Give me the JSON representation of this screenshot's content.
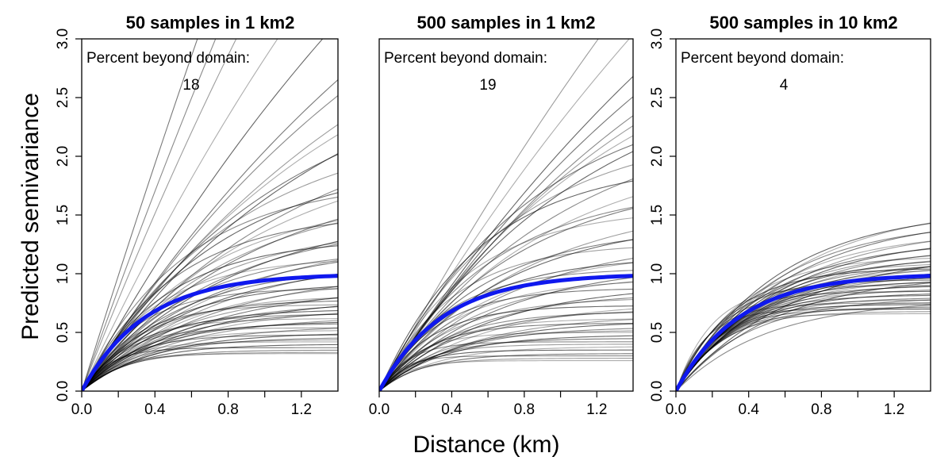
{
  "figure": {
    "y_axis_title": "Predicted semivariance",
    "x_axis_title": "Distance (km)",
    "colors": {
      "mean_curve": "#0f18ee",
      "sample_curves": "#000000",
      "frame": "#000000"
    }
  },
  "chart_data": [
    {
      "type": "line",
      "title": "50 samples in 1 km2",
      "annotation_label": "Percent beyond domain:",
      "annotation_value": "18",
      "xlim": [
        0,
        1.4
      ],
      "ylim": [
        0,
        3.0
      ],
      "x_ticks": [
        "0.0",
        "0.4",
        "0.8",
        "1.2"
      ],
      "x_tick_values": [
        0.0,
        0.4,
        0.8,
        1.2
      ],
      "x_minor_tick_values": [
        0.2,
        0.6,
        1.0
      ],
      "y_ticks": [
        "0.0",
        "0.5",
        "1.0",
        "1.5",
        "2.0",
        "2.5",
        "3.0"
      ],
      "y_tick_values": [
        0.0,
        0.5,
        1.0,
        1.5,
        2.0,
        2.5,
        3.0
      ],
      "show_y_ticks": true,
      "mean_curve": {
        "model": "exponential",
        "sill": 1.0,
        "range": 0.35
      },
      "sample_curves": [
        {
          "sill": 0.32,
          "range": 0.18
        },
        {
          "sill": 0.33,
          "range": 0.22
        },
        {
          "sill": 0.35,
          "range": 0.25
        },
        {
          "sill": 0.37,
          "range": 0.15
        },
        {
          "sill": 0.4,
          "range": 0.3
        },
        {
          "sill": 0.42,
          "range": 0.2
        },
        {
          "sill": 0.44,
          "range": 0.28
        },
        {
          "sill": 0.46,
          "range": 0.35
        },
        {
          "sill": 0.48,
          "range": 0.24
        },
        {
          "sill": 0.5,
          "range": 0.4
        },
        {
          "sill": 0.52,
          "range": 0.3
        },
        {
          "sill": 0.54,
          "range": 0.22
        },
        {
          "sill": 0.56,
          "range": 0.45
        },
        {
          "sill": 0.58,
          "range": 0.32
        },
        {
          "sill": 0.6,
          "range": 0.38
        },
        {
          "sill": 0.62,
          "range": 0.26
        },
        {
          "sill": 0.64,
          "range": 0.5
        },
        {
          "sill": 0.66,
          "range": 0.3
        },
        {
          "sill": 0.68,
          "range": 0.42
        },
        {
          "sill": 0.7,
          "range": 0.36
        },
        {
          "sill": 0.72,
          "range": 0.55
        },
        {
          "sill": 0.74,
          "range": 0.28
        },
        {
          "sill": 0.76,
          "range": 0.48
        },
        {
          "sill": 0.78,
          "range": 0.34
        },
        {
          "sill": 0.8,
          "range": 0.6
        },
        {
          "sill": 0.82,
          "range": 0.4
        },
        {
          "sill": 0.85,
          "range": 0.52
        },
        {
          "sill": 0.88,
          "range": 0.3
        },
        {
          "sill": 0.9,
          "range": 0.65
        },
        {
          "sill": 0.93,
          "range": 0.44
        },
        {
          "sill": 0.96,
          "range": 0.58
        },
        {
          "sill": 1.0,
          "range": 0.36
        },
        {
          "sill": 1.03,
          "range": 0.7
        },
        {
          "sill": 1.06,
          "range": 0.5
        },
        {
          "sill": 1.1,
          "range": 0.62
        },
        {
          "sill": 1.14,
          "range": 0.4
        },
        {
          "sill": 1.18,
          "range": 0.75
        },
        {
          "sill": 1.22,
          "range": 0.55
        },
        {
          "sill": 1.26,
          "range": 0.68
        },
        {
          "sill": 1.3,
          "range": 0.46
        },
        {
          "sill": 1.35,
          "range": 0.8
        },
        {
          "sill": 1.4,
          "range": 0.6
        },
        {
          "sill": 1.46,
          "range": 0.72
        },
        {
          "sill": 1.52,
          "range": 0.5
        },
        {
          "sill": 1.58,
          "range": 0.85
        },
        {
          "sill": 1.65,
          "range": 0.66
        },
        {
          "sill": 1.72,
          "range": 0.78
        },
        {
          "sill": 1.8,
          "range": 0.56
        },
        {
          "sill": 1.9,
          "range": 0.95
        },
        {
          "sill": 2.0,
          "range": 0.75
        },
        {
          "sill": 2.15,
          "range": 1.0
        },
        {
          "sill": 2.3,
          "range": 0.85
        },
        {
          "sill": 2.5,
          "range": 1.2
        },
        {
          "sill": 2.8,
          "range": 1.1
        },
        {
          "sill": 3.2,
          "range": 1.4
        },
        {
          "sill": 3.6,
          "range": 1.5
        },
        {
          "sill": 4.2,
          "range": 1.8
        },
        {
          "sill": 5.0,
          "range": 2.0
        },
        {
          "sill": 6.0,
          "range": 2.4
        },
        {
          "sill": 8.0,
          "range": 2.8
        },
        {
          "sill": 10.0,
          "range": 3.0
        },
        {
          "sill": 14.0,
          "range": 3.5
        },
        {
          "sill": 20.0,
          "range": 4.5
        },
        {
          "sill": 30.0,
          "range": 6.0
        }
      ]
    },
    {
      "type": "line",
      "title": "500 samples in 1 km2",
      "annotation_label": "Percent beyond domain:",
      "annotation_value": "19",
      "xlim": [
        0,
        1.4
      ],
      "ylim": [
        0,
        3.0
      ],
      "x_ticks": [
        "0.0",
        "0.4",
        "0.8",
        "1.2"
      ],
      "x_tick_values": [
        0.0,
        0.4,
        0.8,
        1.2
      ],
      "x_minor_tick_values": [
        0.2,
        0.6,
        1.0
      ],
      "y_ticks": [],
      "y_tick_values": [],
      "show_y_ticks": false,
      "mean_curve": {
        "model": "exponential",
        "sill": 1.0,
        "range": 0.35
      },
      "sample_curves": [
        {
          "sill": 0.26,
          "range": 0.15
        },
        {
          "sill": 0.28,
          "range": 0.2
        },
        {
          "sill": 0.3,
          "range": 0.12
        },
        {
          "sill": 0.32,
          "range": 0.25
        },
        {
          "sill": 0.35,
          "range": 0.18
        },
        {
          "sill": 0.38,
          "range": 0.3
        },
        {
          "sill": 0.4,
          "range": 0.22
        },
        {
          "sill": 0.42,
          "range": 0.16
        },
        {
          "sill": 0.45,
          "range": 0.28
        },
        {
          "sill": 0.48,
          "range": 0.35
        },
        {
          "sill": 0.5,
          "range": 0.2
        },
        {
          "sill": 0.52,
          "range": 0.32
        },
        {
          "sill": 0.55,
          "range": 0.4
        },
        {
          "sill": 0.58,
          "range": 0.26
        },
        {
          "sill": 0.6,
          "range": 0.45
        },
        {
          "sill": 0.62,
          "range": 0.3
        },
        {
          "sill": 0.65,
          "range": 0.5
        },
        {
          "sill": 0.68,
          "range": 0.34
        },
        {
          "sill": 0.7,
          "range": 0.42
        },
        {
          "sill": 0.73,
          "range": 0.28
        },
        {
          "sill": 0.76,
          "range": 0.55
        },
        {
          "sill": 0.8,
          "range": 0.38
        },
        {
          "sill": 0.84,
          "range": 0.48
        },
        {
          "sill": 0.88,
          "range": 0.32
        },
        {
          "sill": 0.92,
          "range": 0.6
        },
        {
          "sill": 0.96,
          "range": 0.42
        },
        {
          "sill": 1.0,
          "range": 0.52
        },
        {
          "sill": 1.05,
          "range": 0.36
        },
        {
          "sill": 1.1,
          "range": 0.66
        },
        {
          "sill": 1.15,
          "range": 0.46
        },
        {
          "sill": 1.2,
          "range": 0.58
        },
        {
          "sill": 1.26,
          "range": 0.4
        },
        {
          "sill": 1.32,
          "range": 0.72
        },
        {
          "sill": 1.4,
          "range": 0.55
        },
        {
          "sill": 1.48,
          "range": 0.68
        },
        {
          "sill": 1.56,
          "range": 0.48
        },
        {
          "sill": 1.65,
          "range": 0.8
        },
        {
          "sill": 1.75,
          "range": 0.62
        },
        {
          "sill": 1.85,
          "range": 0.76
        },
        {
          "sill": 1.95,
          "range": 0.56
        },
        {
          "sill": 2.1,
          "range": 0.9
        },
        {
          "sill": 2.25,
          "range": 0.72
        },
        {
          "sill": 2.4,
          "range": 1.0
        },
        {
          "sill": 2.6,
          "range": 0.85
        },
        {
          "sill": 2.9,
          "range": 1.15
        },
        {
          "sill": 3.3,
          "range": 1.3
        },
        {
          "sill": 3.8,
          "range": 1.55
        },
        {
          "sill": 4.5,
          "range": 1.9
        },
        {
          "sill": 5.5,
          "range": 2.3
        },
        {
          "sill": 7.0,
          "range": 2.9
        },
        {
          "sill": 9.0,
          "range": 3.4
        },
        {
          "sill": 12.0,
          "range": 4.2
        }
      ]
    },
    {
      "type": "line",
      "title": "500 samples in 10 km2",
      "annotation_label": "Percent beyond domain:",
      "annotation_value": "4",
      "xlim": [
        0,
        1.4
      ],
      "ylim": [
        0,
        3.0
      ],
      "x_ticks": [
        "0.0",
        "0.4",
        "0.8",
        "1.2"
      ],
      "x_tick_values": [
        0.0,
        0.4,
        0.8,
        1.2
      ],
      "x_minor_tick_values": [
        0.2,
        0.6,
        1.0
      ],
      "y_ticks": [
        "0.0",
        "0.5",
        "1.0",
        "1.5",
        "2.0",
        "2.5",
        "3.0"
      ],
      "y_tick_values": [
        0.0,
        0.5,
        1.0,
        1.5,
        2.0,
        2.5,
        3.0
      ],
      "show_y_ticks": true,
      "mean_curve": {
        "model": "exponential",
        "sill": 1.0,
        "range": 0.35
      },
      "sample_curves": [
        {
          "sill": 0.66,
          "range": 0.2
        },
        {
          "sill": 0.68,
          "range": 0.25
        },
        {
          "sill": 0.7,
          "range": 0.22
        },
        {
          "sill": 0.72,
          "range": 0.28
        },
        {
          "sill": 0.74,
          "range": 0.24
        },
        {
          "sill": 0.76,
          "range": 0.3
        },
        {
          "sill": 0.78,
          "range": 0.26
        },
        {
          "sill": 0.8,
          "range": 0.32
        },
        {
          "sill": 0.82,
          "range": 0.28
        },
        {
          "sill": 0.84,
          "range": 0.34
        },
        {
          "sill": 0.86,
          "range": 0.3
        },
        {
          "sill": 0.88,
          "range": 0.36
        },
        {
          "sill": 0.9,
          "range": 0.32
        },
        {
          "sill": 0.92,
          "range": 0.38
        },
        {
          "sill": 0.94,
          "range": 0.34
        },
        {
          "sill": 0.96,
          "range": 0.4
        },
        {
          "sill": 0.98,
          "range": 0.36
        },
        {
          "sill": 1.0,
          "range": 0.42
        },
        {
          "sill": 1.02,
          "range": 0.38
        },
        {
          "sill": 1.04,
          "range": 0.44
        },
        {
          "sill": 1.06,
          "range": 0.4
        },
        {
          "sill": 1.08,
          "range": 0.46
        },
        {
          "sill": 1.1,
          "range": 0.42
        },
        {
          "sill": 1.12,
          "range": 0.48
        },
        {
          "sill": 1.15,
          "range": 0.44
        },
        {
          "sill": 1.18,
          "range": 0.5
        },
        {
          "sill": 1.21,
          "range": 0.46
        },
        {
          "sill": 1.24,
          "range": 0.52
        },
        {
          "sill": 1.28,
          "range": 0.48
        },
        {
          "sill": 1.32,
          "range": 0.55
        },
        {
          "sill": 1.36,
          "range": 0.5
        },
        {
          "sill": 1.4,
          "range": 0.58
        },
        {
          "sill": 1.45,
          "range": 0.52
        },
        {
          "sill": 1.5,
          "range": 0.6
        },
        {
          "sill": 1.55,
          "range": 0.55
        },
        {
          "sill": 1.6,
          "range": 0.62
        },
        {
          "sill": 0.75,
          "range": 0.18
        },
        {
          "sill": 0.85,
          "range": 0.22
        },
        {
          "sill": 0.95,
          "range": 0.26
        },
        {
          "sill": 1.05,
          "range": 0.3
        },
        {
          "sill": 1.15,
          "range": 0.34
        },
        {
          "sill": 0.7,
          "range": 0.16
        },
        {
          "sill": 0.8,
          "range": 0.4
        },
        {
          "sill": 1.0,
          "range": 0.55
        },
        {
          "sill": 1.2,
          "range": 0.65
        },
        {
          "sill": 0.9,
          "range": 0.2
        },
        {
          "sill": 1.1,
          "range": 0.36
        },
        {
          "sill": 0.78,
          "range": 0.5
        }
      ]
    }
  ]
}
